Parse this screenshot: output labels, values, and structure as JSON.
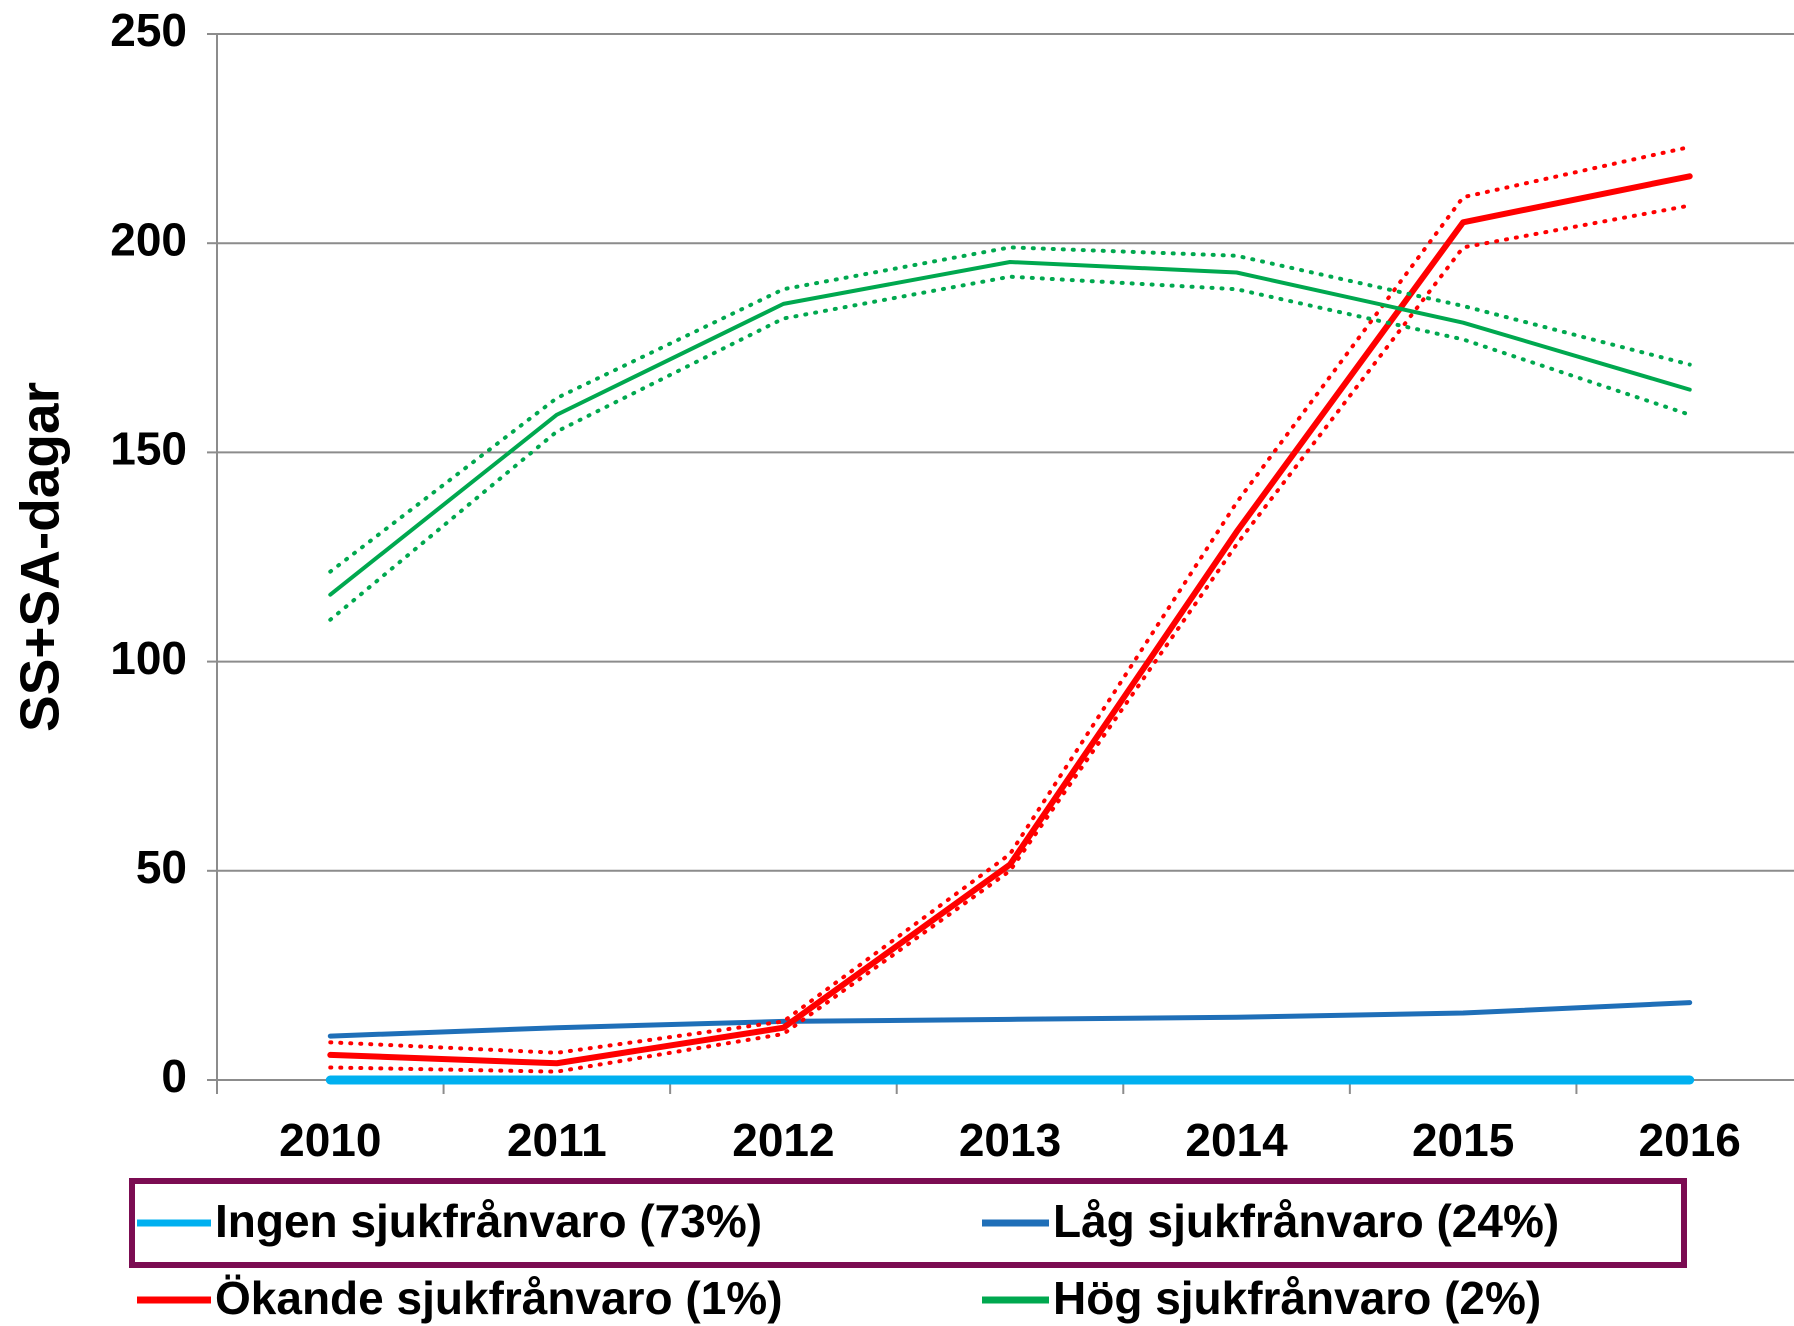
{
  "chart_data": {
    "type": "line",
    "y_label": "SS+SA-dagar",
    "categories": [
      "2010",
      "2011",
      "2012",
      "2013",
      "2014",
      "2015",
      "2016"
    ],
    "ylim": [
      0,
      250
    ],
    "yticks": [
      0,
      50,
      100,
      150,
      200,
      250
    ],
    "grid": true,
    "series": [
      {
        "name": "Ingen sjukfrånvaro (73%)",
        "color": "#00b0f0",
        "values": [
          0,
          0,
          0,
          0,
          0,
          0,
          0
        ]
      },
      {
        "name": "Låg sjukfrånvaro (24%)",
        "color": "#1f6fb8",
        "values": [
          10.5,
          12.5,
          14,
          14.5,
          15,
          16,
          18.5
        ]
      },
      {
        "name": "Ökande sjukfrånvaro (1%)",
        "color": "#ff0000",
        "values": [
          6,
          4,
          12.5,
          51.5,
          131,
          205,
          216
        ],
        "upper": [
          9,
          6.5,
          14,
          54,
          138,
          211,
          223
        ],
        "lower": [
          3,
          2,
          11,
          50,
          128,
          199,
          209
        ]
      },
      {
        "name": "Hög sjukfrånvaro (2%)",
        "color": "#00a84f",
        "values": [
          116,
          159,
          185.5,
          195.5,
          193,
          181,
          165
        ],
        "upper": [
          121.5,
          163,
          189,
          199,
          197,
          185,
          171
        ],
        "lower": [
          110,
          155,
          182,
          192,
          189,
          177,
          159
        ]
      }
    ]
  }
}
